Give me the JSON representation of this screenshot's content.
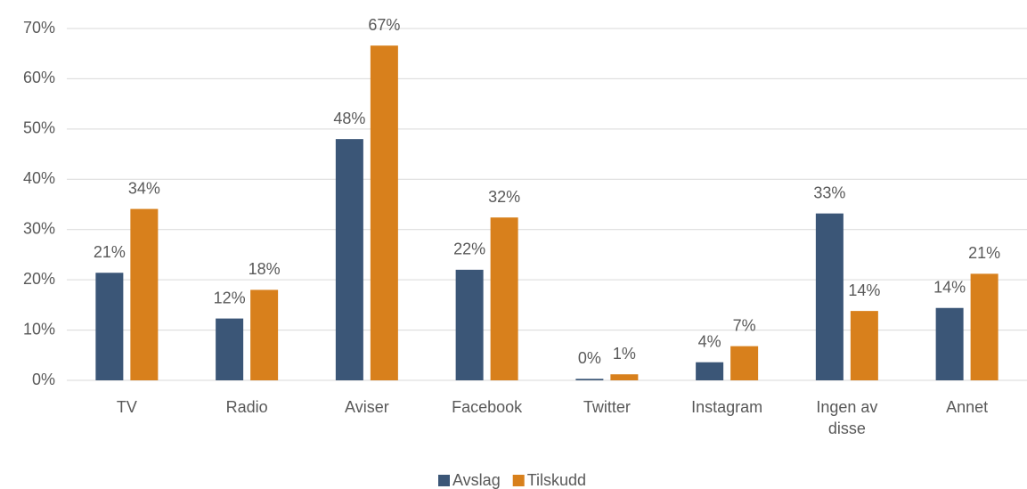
{
  "chart_data": {
    "type": "bar",
    "categories": [
      "TV",
      "Radio",
      "Aviser",
      "Facebook",
      "Twitter",
      "Instagram",
      "Ingen av disse",
      "Annet"
    ],
    "series": [
      {
        "name": "Avslag",
        "color": "#3b5677",
        "values": [
          21.4,
          12.3,
          48,
          22,
          0.3,
          3.6,
          33.2,
          14.4
        ],
        "value_labels": [
          "21%",
          "12%",
          "48%",
          "22%",
          "0%",
          "4%",
          "33%",
          "14%"
        ]
      },
      {
        "name": "Tilskudd",
        "color": "#d8801c",
        "values": [
          34.1,
          18,
          66.6,
          32.4,
          1.2,
          6.8,
          13.8,
          21.2
        ],
        "value_labels": [
          "34%",
          "18%",
          "67%",
          "32%",
          "1%",
          "7%",
          "14%",
          "21%"
        ]
      }
    ],
    "ylim": [
      0,
      70
    ],
    "yticks": [
      {
        "value": 0,
        "label": "0%"
      },
      {
        "value": 10,
        "label": "10%"
      },
      {
        "value": 20,
        "label": "20%"
      },
      {
        "value": 30,
        "label": "30%"
      },
      {
        "value": 40,
        "label": "40%"
      },
      {
        "value": 50,
        "label": "50%"
      },
      {
        "value": 60,
        "label": "60%"
      },
      {
        "value": 70,
        "label": "70%"
      }
    ],
    "grid": true,
    "legend": "bottom"
  }
}
